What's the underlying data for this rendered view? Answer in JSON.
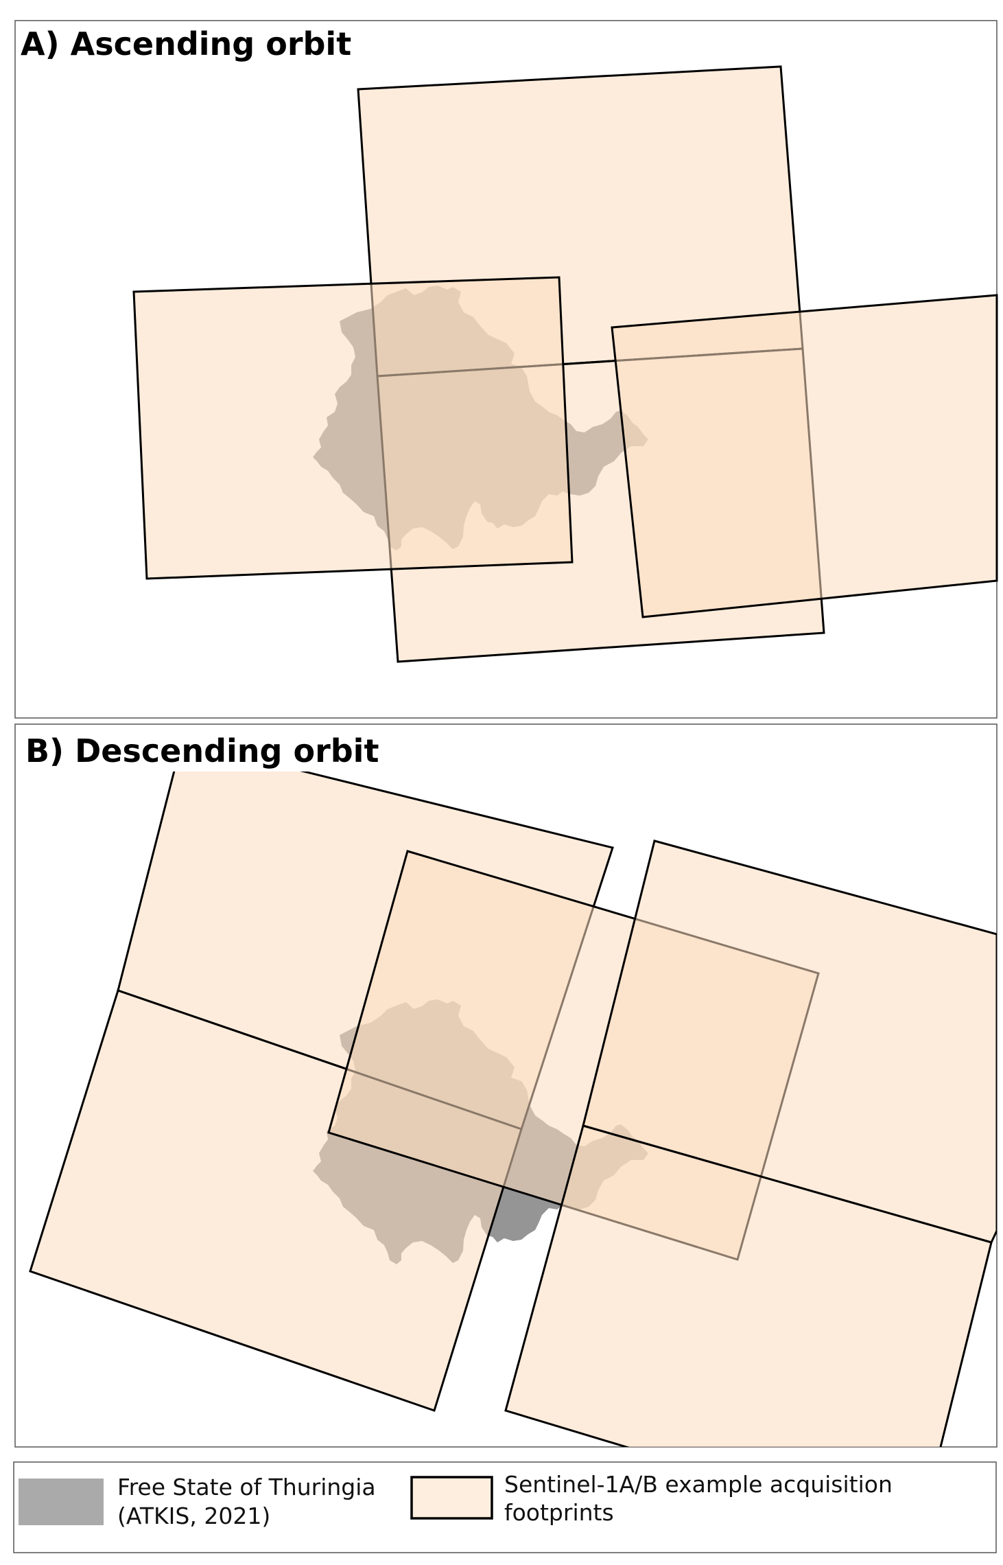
{
  "panels": {
    "a_title": "A) Ascending orbit",
    "b_title": "B) Descending orbit"
  },
  "legend": {
    "thuringia_line1": "Free State of Thuringia",
    "thuringia_line2": "(ATKIS, 2021)",
    "footprint_line1": "Sentinel-1A/B example acquisition",
    "footprint_line2": "footprints"
  },
  "colors": {
    "footprint_fill": "#fcdcbf",
    "region_fill": "#8a8a8a",
    "outline": "#000000"
  }
}
